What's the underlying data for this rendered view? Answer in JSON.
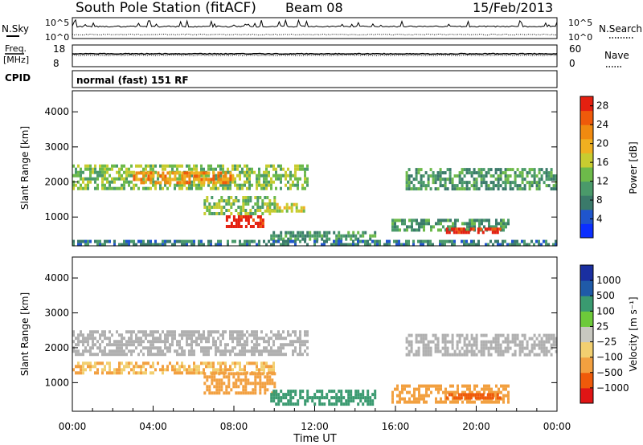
{
  "header": {
    "station": "South Pole Station (fitACF)",
    "beam": "Beam 08",
    "date": "15/Feb/2013"
  },
  "strip_nsky": {
    "left_label": "N.Sky",
    "right_label": "N.Search",
    "left_ticks": [
      "10^5",
      "10^0"
    ],
    "right_ticks": [
      "10^5",
      "10^0"
    ]
  },
  "strip_freq": {
    "left_label_1": "Freq.",
    "left_label_2": "[MHz]",
    "right_label": "Nave",
    "left_ticks": [
      "18",
      "8"
    ],
    "right_ticks": [
      "60",
      "0"
    ]
  },
  "cpid": {
    "label": "CPID",
    "value": "normal (fast) 151 RF"
  },
  "colors": {
    "power": [
      "#0b2fff",
      "#1f55cc",
      "#3a7a6a",
      "#4a9a6a",
      "#6dba4a",
      "#c8cc30",
      "#f0b020",
      "#f08a10",
      "#ef5a0a",
      "#e52010"
    ],
    "velocity": [
      "#e01515",
      "#ef5a0a",
      "#f2a040",
      "#f2cf70",
      "#c8c8c0",
      "#6dca3a",
      "#3a9a70",
      "#1f5aa8",
      "#1a2fa0"
    ],
    "ground_scatter": "#b0b0b0"
  },
  "chart_data": [
    {
      "type": "heatmap",
      "quantity": "Power",
      "ylabel": "Slant Range [km]",
      "ylim": [
        180,
        4600
      ],
      "y_ticks": [
        "1000",
        "2000",
        "3000",
        "4000"
      ],
      "xlim": [
        "00:00",
        "24:00"
      ],
      "colorbar": {
        "label": "Power [dB]",
        "ticks": [
          "4",
          "8",
          "12",
          "16",
          "20",
          "24",
          "28"
        ],
        "range": [
          0,
          30
        ]
      },
      "features": [
        {
          "t0": 0.0,
          "t1": 11.6,
          "r0": 1800,
          "r1": 2500,
          "value_db": 14
        },
        {
          "t0": 3.0,
          "t1": 8.0,
          "r0": 2000,
          "r1": 2300,
          "value_db": 22
        },
        {
          "t0": 6.5,
          "t1": 10.0,
          "r0": 1100,
          "r1": 1600,
          "value_db": 14
        },
        {
          "t0": 7.6,
          "t1": 9.4,
          "r0": 700,
          "r1": 1050,
          "value_db": 30
        },
        {
          "t0": 9.5,
          "t1": 11.5,
          "r0": 1200,
          "r1": 1400,
          "value_db": 16
        },
        {
          "t0": 9.8,
          "t1": 15.0,
          "r0": 350,
          "r1": 600,
          "value_db": 10
        },
        {
          "t0": 15.8,
          "t1": 21.6,
          "r0": 600,
          "r1": 950,
          "value_db": 10
        },
        {
          "t0": 18.5,
          "t1": 21.2,
          "r0": 550,
          "r1": 700,
          "value_db": 28
        },
        {
          "t0": 16.5,
          "t1": 24.0,
          "r0": 1800,
          "r1": 2400,
          "value_db": 10
        },
        {
          "t0": 0.0,
          "t1": 24.0,
          "r0": 200,
          "r1": 350,
          "value_db": 8
        }
      ]
    },
    {
      "type": "heatmap",
      "quantity": "Velocity",
      "ylabel": "Slant Range [km]",
      "ylim": [
        180,
        4600
      ],
      "y_ticks": [
        "1000",
        "2000",
        "3000",
        "4000"
      ],
      "xlabel": "Time UT",
      "x_ticks": [
        "00:00",
        "04:00",
        "08:00",
        "12:00",
        "16:00",
        "20:00",
        "00:00"
      ],
      "colorbar": {
        "label": "Velocity [m s⁻¹]",
        "ticks": [
          "1000",
          "500",
          "100",
          "25",
          "−25",
          "−100",
          "−500",
          "−1000"
        ]
      },
      "features": [
        {
          "t0": 0.0,
          "t1": 11.6,
          "r0": 1800,
          "r1": 2500,
          "value_ms": 0,
          "ground_scatter": true
        },
        {
          "t0": 0.0,
          "t1": 10.0,
          "r0": 1300,
          "r1": 1600,
          "value_ms": -100
        },
        {
          "t0": 6.5,
          "t1": 10.0,
          "r0": 700,
          "r1": 1300,
          "value_ms": -200
        },
        {
          "t0": 9.8,
          "t1": 15.0,
          "r0": 350,
          "r1": 800,
          "value_ms": 300
        },
        {
          "t0": 15.8,
          "t1": 21.6,
          "r0": 400,
          "r1": 950,
          "value_ms": -150
        },
        {
          "t0": 18.5,
          "t1": 21.2,
          "r0": 550,
          "r1": 700,
          "value_ms": -600
        },
        {
          "t0": 16.5,
          "t1": 24.0,
          "r0": 1800,
          "r1": 2400,
          "value_ms": 0,
          "ground_scatter": true
        }
      ]
    }
  ]
}
